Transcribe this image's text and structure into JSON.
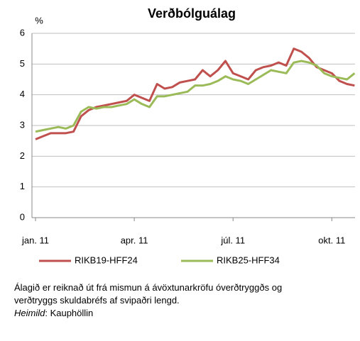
{
  "chart_data": {
    "type": "line",
    "title": "Verðbólguálag",
    "y_label": "%",
    "categories": [
      "jan. 11",
      null,
      null,
      null,
      null,
      null,
      null,
      null,
      null,
      null,
      null,
      null,
      null,
      "apr. 11",
      null,
      null,
      null,
      null,
      null,
      null,
      null,
      null,
      null,
      null,
      null,
      null,
      "júl. 11",
      null,
      null,
      null,
      null,
      null,
      null,
      null,
      null,
      null,
      null,
      null,
      null,
      "okt. 11",
      null,
      null,
      null
    ],
    "series": [
      {
        "name": "RIKB19-HFF24",
        "color": "#c0504d",
        "values": [
          2.55,
          2.65,
          2.75,
          2.75,
          2.75,
          2.8,
          3.3,
          3.5,
          3.6,
          3.65,
          3.7,
          3.75,
          3.8,
          4.0,
          3.9,
          3.8,
          4.35,
          4.2,
          4.25,
          4.4,
          4.45,
          4.5,
          4.8,
          4.6,
          4.8,
          5.1,
          4.7,
          4.6,
          4.5,
          4.8,
          4.9,
          4.95,
          5.05,
          4.95,
          5.5,
          5.4,
          5.2,
          4.9,
          4.8,
          4.7,
          4.45,
          4.35,
          4.3
        ]
      },
      {
        "name": "RIKB25-HFF34",
        "color": "#9bbb59",
        "values": [
          2.8,
          2.85,
          2.9,
          2.95,
          2.9,
          3.0,
          3.45,
          3.6,
          3.55,
          3.6,
          3.6,
          3.65,
          3.7,
          3.85,
          3.7,
          3.6,
          3.95,
          3.95,
          4.0,
          4.05,
          4.1,
          4.3,
          4.3,
          4.35,
          4.45,
          4.6,
          4.5,
          4.45,
          4.35,
          4.5,
          4.65,
          4.8,
          4.75,
          4.7,
          5.05,
          5.1,
          5.05,
          4.95,
          4.7,
          4.6,
          4.55,
          4.5,
          4.7
        ]
      }
    ],
    "ylim": [
      0,
      6
    ],
    "yticks": [
      0,
      1,
      2,
      3,
      4,
      5,
      6
    ],
    "grid": true,
    "legend": "bottom",
    "note": "Álagið er reiknað út frá mismun á  ávöxtunarkröfu óverðtryggðs og verðtryggs skuldabréfs af svipaðri lengd.",
    "source_label": "Heimild",
    "source_text": ": Kauphöllin"
  }
}
